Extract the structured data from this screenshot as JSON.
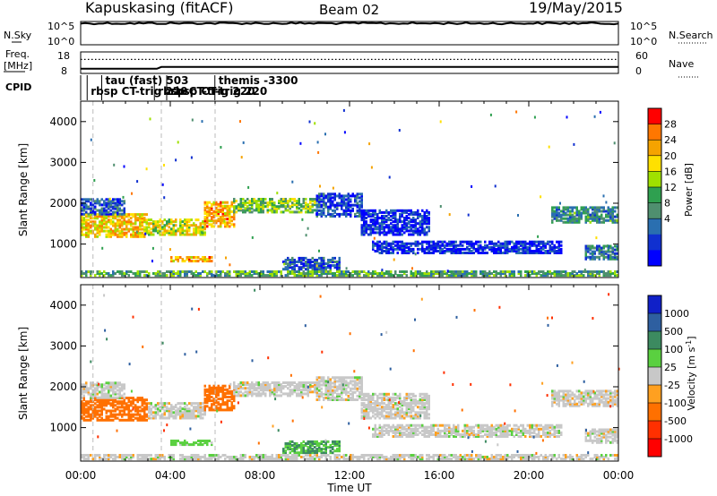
{
  "header": {
    "station": "Kapuskasing (fitACF)",
    "beam": "Beam 02",
    "date": "19/May/2015"
  },
  "strips": {
    "nsky": {
      "label": "N.Sky",
      "right_label": "N.Search",
      "left_ticks": [
        "10^5",
        "10^0"
      ],
      "right_ticks": [
        "10^5",
        "10^0"
      ]
    },
    "freq": {
      "label_line1": "Freq.",
      "label_line2": "[MHz]",
      "right_label": "Nave",
      "left_ticks": [
        "18",
        "8"
      ],
      "right_ticks": [
        "60",
        "0"
      ]
    },
    "cpid": {
      "label": "CPID",
      "entries": [
        {
          "text": "rbsp CT-trig 220",
          "row": 2,
          "hour": 0.45
        },
        {
          "text": "tau (fast) 503",
          "row": 1,
          "hour": 1.1
        },
        {
          "text": "rbsp CT-trig 220",
          "row": 2,
          "hour": 3.45
        },
        {
          "text": "themis -3300",
          "row": 1,
          "hour": 6.15
        },
        {
          "text": "rbsp CT-trig 220",
          "row": 2,
          "hour": 4.0
        }
      ]
    }
  },
  "power_panel": {
    "ylabel": "Slant Range [km]",
    "colorbar_label": "Power [dB]",
    "colorbar_ticks": [
      "28",
      "24",
      "20",
      "16",
      "12",
      "8",
      "4"
    ],
    "colorbar_colors": [
      "#ff0000",
      "#ff7700",
      "#f5a300",
      "#ffe000",
      "#a0e000",
      "#2fa050",
      "#4f8f6f",
      "#2a6fb0",
      "#1030d0",
      "#0000ff"
    ]
  },
  "velocity_panel": {
    "ylabel": "Slant Range [km]",
    "colorbar_label": "Velocity [m s",
    "colorbar_label_sup": "-1",
    "colorbar_label_end": "]",
    "colorbar_ticks": [
      "1000",
      "500",
      "100",
      "25",
      "-25",
      "-100",
      "-500",
      "-1000"
    ],
    "colorbar_colors": [
      "#1020c8",
      "#2e5fa0",
      "#3c8a60",
      "#5ad040",
      "#c8c8c8",
      "#ffa020",
      "#ff7000",
      "#ff3000",
      "#ff0000"
    ]
  },
  "x_axis": {
    "label": "Time UT",
    "tick_labels": [
      "00:00",
      "04:00",
      "08:00",
      "12:00",
      "16:00",
      "20:00",
      "00:00"
    ]
  },
  "chart_data": {
    "type": "heatmap",
    "title": "Kapuskasing (fitACF)  Beam 02  19/May/2015",
    "xlabel": "Time UT",
    "ylabel": "Slant Range [km]",
    "xlim_hours": [
      0,
      24
    ],
    "ylim_km": [
      180,
      4500
    ],
    "y_ticks": [
      1000,
      2000,
      3000,
      4000
    ],
    "x_ticks_hours": [
      0,
      4,
      8,
      12,
      16,
      20,
      24
    ],
    "cpid_change_hours": [
      0.55,
      3.6,
      6.0
    ],
    "nsky_level": 0.92,
    "freq_level": 0.3,
    "nave_level": 0.65,
    "echo_bands": [
      {
        "t0": 0.0,
        "t1": 3.0,
        "r0": 1150,
        "r1": 1700,
        "power_db": 22,
        "velocity": -300
      },
      {
        "t0": 0.0,
        "t1": 2.0,
        "r0": 1700,
        "r1": 2100,
        "power_db": 8,
        "velocity": 0
      },
      {
        "t0": 3.0,
        "t1": 5.5,
        "r0": 1200,
        "r1": 1600,
        "power_db": 20,
        "velocity": 0
      },
      {
        "t0": 5.5,
        "t1": 6.8,
        "r0": 1400,
        "r1": 2000,
        "power_db": 24,
        "velocity": -200
      },
      {
        "t0": 6.8,
        "t1": 10.5,
        "r0": 1750,
        "r1": 2100,
        "power_db": 16,
        "velocity": 0
      },
      {
        "t0": 10.5,
        "t1": 12.5,
        "r0": 1650,
        "r1": 2200,
        "power_db": 6,
        "velocity": 0
      },
      {
        "t0": 12.5,
        "t1": 15.5,
        "r0": 1200,
        "r1": 1800,
        "power_db": 5,
        "velocity": 0
      },
      {
        "t0": 4.0,
        "t1": 5.8,
        "r0": 550,
        "r1": 650,
        "power_db": 24,
        "velocity": 50
      },
      {
        "t0": 9.0,
        "t1": 11.5,
        "r0": 350,
        "r1": 650,
        "power_db": 8,
        "velocity": 100
      },
      {
        "t0": 21.0,
        "t1": 24.0,
        "r0": 1500,
        "r1": 1900,
        "power_db": 12,
        "velocity": 0
      },
      {
        "t0": 22.5,
        "t1": 24.0,
        "r0": 600,
        "r1": 950,
        "power_db": 10,
        "velocity": 0
      },
      {
        "t0": 13.0,
        "t1": 21.5,
        "r0": 750,
        "r1": 1050,
        "power_db": 5,
        "velocity": 0
      },
      {
        "t0": 0.0,
        "t1": 24.0,
        "r0": 200,
        "r1": 300,
        "power_db": 14,
        "velocity": 0
      }
    ]
  }
}
